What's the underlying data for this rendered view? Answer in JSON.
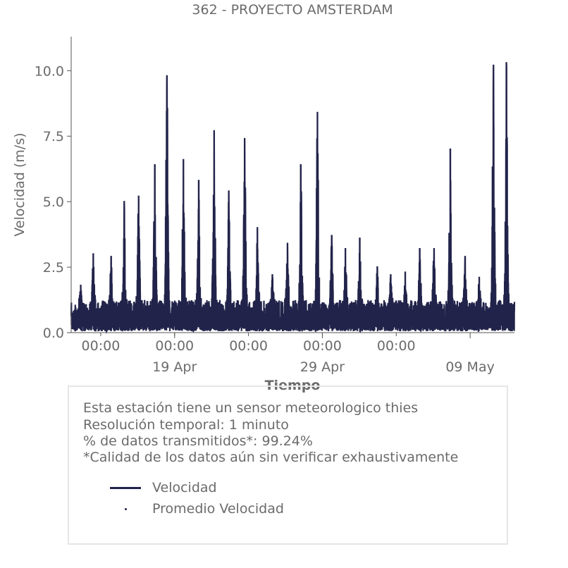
{
  "chart_data": {
    "type": "line",
    "title": "362 - PROYECTO AMSTERDAM",
    "xlabel": "Tiempo",
    "ylabel": "Velocidad (m/s)",
    "ylim": [
      0,
      11.3
    ],
    "yticks": [
      "0.0",
      "2.5",
      "5.0",
      "7.5",
      "10.0"
    ],
    "xlim": [
      "2024-04-12",
      "2024-05-12"
    ],
    "xticks_time": [
      "00:00",
      "00:00",
      "00:00",
      "00:00",
      "00:00"
    ],
    "xticks_date": [
      "19 Apr",
      "29 Apr",
      "09 May"
    ],
    "grid": false,
    "series": [
      {
        "name": "Velocidad",
        "color": "#21234a",
        "style": "line",
        "peaks_daily_approx": [
          {
            "x": "2024-04-12",
            "y": 1.8
          },
          {
            "x": "2024-04-13",
            "y": 3.0
          },
          {
            "x": "2024-04-14",
            "y": 2.9
          },
          {
            "x": "2024-04-15",
            "y": 5.0
          },
          {
            "x": "2024-04-16",
            "y": 5.2
          },
          {
            "x": "2024-04-17",
            "y": 6.4
          },
          {
            "x": "2024-04-18",
            "y": 9.8
          },
          {
            "x": "2024-04-19",
            "y": 6.6
          },
          {
            "x": "2024-04-20",
            "y": 5.8
          },
          {
            "x": "2024-04-21",
            "y": 7.7
          },
          {
            "x": "2024-04-22",
            "y": 5.4
          },
          {
            "x": "2024-04-23",
            "y": 7.4
          },
          {
            "x": "2024-04-24",
            "y": 4.0
          },
          {
            "x": "2024-04-25",
            "y": 2.2
          },
          {
            "x": "2024-04-26",
            "y": 3.4
          },
          {
            "x": "2024-04-27",
            "y": 6.4
          },
          {
            "x": "2024-04-28",
            "y": 8.4
          },
          {
            "x": "2024-04-29",
            "y": 3.7
          },
          {
            "x": "2024-04-30",
            "y": 3.2
          },
          {
            "x": "2024-05-01",
            "y": 3.6
          },
          {
            "x": "2024-05-02",
            "y": 2.5
          },
          {
            "x": "2024-05-03",
            "y": 2.2
          },
          {
            "x": "2024-05-04",
            "y": 2.3
          },
          {
            "x": "2024-05-05",
            "y": 3.2
          },
          {
            "x": "2024-05-06",
            "y": 3.2
          },
          {
            "x": "2024-05-07",
            "y": 7.0
          },
          {
            "x": "2024-05-08",
            "y": 2.9
          },
          {
            "x": "2024-05-09",
            "y": 2.1
          },
          {
            "x": "2024-05-10",
            "y": 10.2
          },
          {
            "x": "2024-05-11",
            "y": 10.3
          }
        ]
      },
      {
        "name": "Promedio Velocidad",
        "color": "#21234a",
        "style": "dot"
      }
    ]
  },
  "info": {
    "line1": "Esta estación tiene un sensor meteorologico thies",
    "line2": "Resolución temporal: 1 minuto",
    "line3": "% de datos transmitidos*: 99.24%",
    "line4": "*Calidad de los datos aún sin verificar exhaustivamente"
  },
  "legend": {
    "line_label": "Velocidad",
    "dot_label": "Promedio Velocidad"
  },
  "colors": {
    "series": "#21234a",
    "text": "#6b6b6b",
    "box_border": "#e6e6e6"
  }
}
